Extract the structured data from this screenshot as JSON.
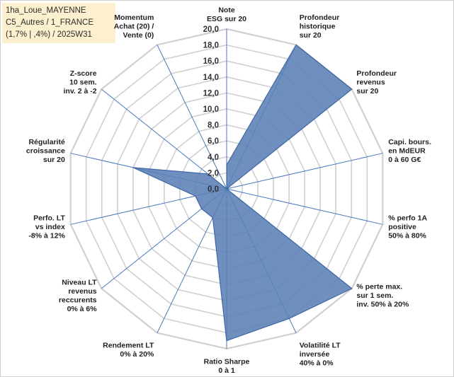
{
  "info_box": {
    "line1": "1ha_Loue_MAYENNE",
    "line2": "C5_Autres / 1_FRANCE",
    "line3": "(1,7% | ,4%) / 2025W31"
  },
  "colors": {
    "series_fill": "#5b7fb5",
    "series_stroke": "#3f68a6",
    "grid": "#d0d0d0",
    "spoke": "#4a78c0",
    "info_bg": "#fdf0cf"
  },
  "chart_data": {
    "type": "radar",
    "title": "",
    "rmin": 0,
    "rmax": 20,
    "tick_step": 2,
    "tick_labels": [
      "0,0",
      "2,0",
      "4,0",
      "6,0",
      "8,0",
      "10,0",
      "12,0",
      "14,0",
      "16,0",
      "18,0",
      "20,0"
    ],
    "axes": [
      [
        "Note",
        "ESG sur 20"
      ],
      [
        "Profondeur",
        "historique",
        "sur 20"
      ],
      [
        "Profondeur",
        "revenus",
        "sur 20"
      ],
      [
        "Capi. bours.",
        "en MdEUR",
        "0 à 60 G€"
      ],
      [
        "% perfo 1A",
        "positive",
        "50% à 80%"
      ],
      [
        "% perte max.",
        "sur 1 sem.",
        "inv. 50% à 20%"
      ],
      [
        "Volatilité LT",
        "inversée",
        "40% à 0%"
      ],
      [
        "Ratio Sharpe",
        "0 à 1"
      ],
      [
        "Rendement LT",
        "0% à 20%"
      ],
      [
        "Niveau LT",
        "revenus",
        "reccurents",
        "0% à 6%"
      ],
      [
        "Perfo. LT",
        "vs index",
        "-8% à 12%"
      ],
      [
        "Régularité",
        "croissance",
        "sur 20"
      ],
      [
        "Z-score",
        "10 sem.",
        "inv. 2 à -2"
      ],
      [
        "Momentum",
        "Achat (20) /",
        "Vente (0)"
      ]
    ],
    "series": [
      {
        "values": [
          3,
          20,
          20,
          0,
          0,
          20,
          18,
          19,
          4,
          4,
          4,
          12,
          3,
          0
        ]
      }
    ],
    "grid": true,
    "legend": "none"
  }
}
